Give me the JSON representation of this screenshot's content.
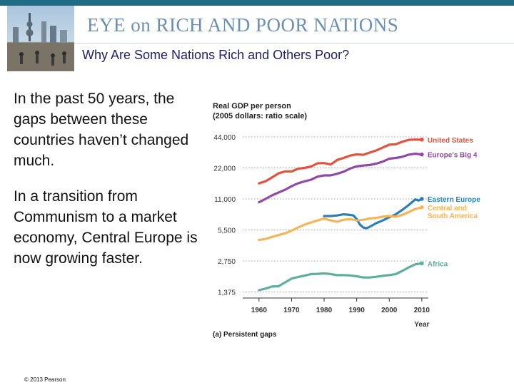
{
  "header": {
    "brand_title": "EYE on RICH AND POOR NATIONS",
    "subtitle": "Why Are Some Nations Rich and Others Poor?"
  },
  "body": {
    "paragraph_1": "In the past 50 years, the gaps between these countries haven’t changed much.",
    "paragraph_2": "In a transition from Communism to a market economy, Central Europe is now growing faster."
  },
  "footer": {
    "copyright": "© 2013 Pearson"
  },
  "colors": {
    "top_bar": "#1e6c86",
    "united_states": "#e2523f",
    "europes_big_4": "#8e4aa6",
    "eastern_europe": "#2a7fb8",
    "central_south_america": "#f3b45a",
    "africa": "#5fae9c"
  },
  "chart_data": {
    "type": "line",
    "title": "Real GDP per person",
    "subtitle": "(2005 dollars: ratio scale)",
    "caption": "(a) Persistent gaps",
    "xlabel": "Year",
    "y_scale": "log",
    "grid": "dotted horizontal",
    "legend": "labels at right end of lines",
    "x_ticks": [
      "1960",
      "1970",
      "1980",
      "1990",
      "2000",
      "2010"
    ],
    "y_ticks": [
      "1,375",
      "2,750",
      "5,500",
      "11,000",
      "22,000",
      "44,000"
    ],
    "xlim": [
      1955,
      2012
    ],
    "ylim": [
      1200,
      55000
    ],
    "series": [
      {
        "name": "United States",
        "label_lines": [
          "United States"
        ],
        "color": "#e2523f",
        "x": [
          1960,
          1962,
          1964,
          1966,
          1968,
          1970,
          1972,
          1974,
          1976,
          1978,
          1980,
          1982,
          1984,
          1986,
          1988,
          1990,
          1992,
          1994,
          1996,
          1998,
          2000,
          2002,
          2004,
          2006,
          2008,
          2010
        ],
        "y": [
          15600,
          16300,
          17800,
          19500,
          20300,
          20300,
          21600,
          22000,
          22700,
          24400,
          24500,
          23700,
          26300,
          27500,
          29000,
          29800,
          29500,
          31000,
          32500,
          34700,
          37000,
          37300,
          39500,
          41200,
          41500,
          41400
        ]
      },
      {
        "name": "Europe's Big 4",
        "label_lines": [
          "Europe's Big 4"
        ],
        "color": "#8e4aa6",
        "x": [
          1960,
          1962,
          1964,
          1966,
          1968,
          1970,
          1972,
          1974,
          1976,
          1978,
          1980,
          1982,
          1984,
          1986,
          1988,
          1990,
          1992,
          1994,
          1996,
          1998,
          2000,
          2002,
          2004,
          2006,
          2008,
          2010
        ],
        "y": [
          10200,
          11000,
          11900,
          12700,
          13500,
          14600,
          15600,
          16300,
          16900,
          18100,
          18600,
          18600,
          19300,
          20200,
          21700,
          22800,
          23200,
          23500,
          24200,
          25300,
          27000,
          27500,
          28200,
          29600,
          30200,
          29700
        ]
      },
      {
        "name": "Eastern Europe",
        "label_lines": [
          "Eastern Europe"
        ],
        "color": "#2a7fb8",
        "x": [
          1980,
          1982,
          1984,
          1986,
          1988,
          1989,
          1990,
          1991,
          1992,
          1993,
          1994,
          1996,
          1998,
          2000,
          2002,
          2004,
          2006,
          2008,
          2009,
          2010
        ],
        "y": [
          7500,
          7500,
          7600,
          7800,
          7700,
          7600,
          7000,
          6200,
          5800,
          5700,
          5900,
          6400,
          6800,
          7300,
          7800,
          8600,
          9600,
          10900,
          10600,
          11000
        ]
      },
      {
        "name": "Central and South America",
        "label_lines": [
          "Central and",
          "South America"
        ],
        "color": "#f3b45a",
        "x": [
          1960,
          1962,
          1964,
          1966,
          1968,
          1970,
          1972,
          1974,
          1976,
          1978,
          1980,
          1982,
          1984,
          1986,
          1988,
          1990,
          1992,
          1994,
          1996,
          1998,
          2000,
          2002,
          2004,
          2006,
          2008,
          2010
        ],
        "y": [
          4400,
          4500,
          4700,
          4900,
          5100,
          5400,
          5800,
          6200,
          6500,
          6800,
          7100,
          6800,
          6600,
          6900,
          7000,
          6800,
          6900,
          7100,
          7200,
          7400,
          7500,
          7400,
          7700,
          8200,
          8800,
          9100
        ]
      },
      {
        "name": "Africa",
        "label_lines": [
          "Africa"
        ],
        "color": "#5fae9c",
        "x": [
          1960,
          1962,
          1964,
          1966,
          1968,
          1970,
          1972,
          1974,
          1976,
          1978,
          1980,
          1982,
          1984,
          1986,
          1988,
          1990,
          1992,
          1994,
          1996,
          1998,
          2000,
          2002,
          2004,
          2006,
          2008,
          2009,
          2010
        ],
        "y": [
          1430,
          1480,
          1550,
          1560,
          1700,
          1850,
          1920,
          1980,
          2050,
          2060,
          2080,
          2050,
          2000,
          2000,
          1990,
          1950,
          1900,
          1900,
          1930,
          1970,
          2000,
          2050,
          2200,
          2380,
          2550,
          2580,
          2600
        ]
      }
    ]
  }
}
